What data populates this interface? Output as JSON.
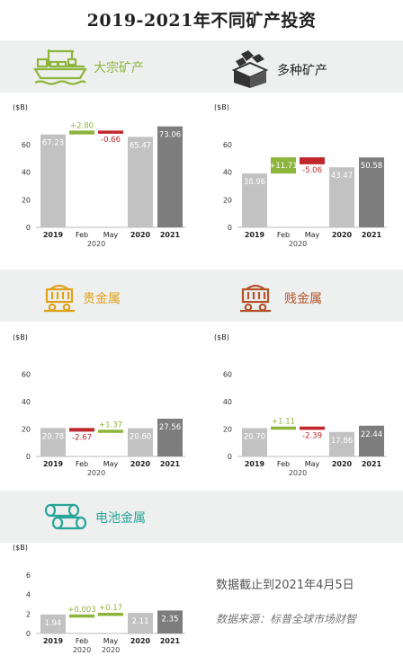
{
  "title": "2019-2021年不同矿产投资",
  "colors": {
    "bar_base": "#c2c2c2",
    "bar_2021": "#7d7d7d",
    "increase": "#8db53c",
    "decrease": "#c0272d",
    "band": "#eef0ef",
    "bulk": "#8db53c",
    "diversified": "#333333",
    "precious": "#e0a21c",
    "base_metal": "#b5532a",
    "battery": "#2aa59a"
  },
  "sections": {
    "bulk": {
      "label": "大宗矿产",
      "icon": "cargo-ship-icon"
    },
    "diversified": {
      "label": "多种矿产",
      "icon": "ore-box-icon"
    },
    "precious": {
      "label": "贵金属",
      "icon": "ore-cart-gold-icon"
    },
    "base_metal": {
      "label": "贱金属",
      "icon": "ore-cart-icon"
    },
    "battery": {
      "label": "电池金属",
      "icon": "pipes-icon"
    }
  },
  "notes": {
    "cutoff": "数据截止到2021年4月5日",
    "source": "数据来源：标普全球市场财智"
  },
  "chart_data": [
    {
      "type": "bar",
      "name": "大宗矿产",
      "ylabel": "($B)",
      "ylim": [
        0,
        80
      ],
      "yticks": [
        0,
        20,
        40,
        60
      ],
      "categories": [
        "2019",
        "Feb",
        "May",
        "2020",
        "2021"
      ],
      "sub_labels": [
        "",
        "2020",
        "",
        "",
        ""
      ],
      "kinds": [
        "base",
        "delta",
        "delta",
        "base",
        "total"
      ],
      "values": [
        67.23,
        2.8,
        -0.66,
        65.47,
        73.06
      ],
      "labels": [
        "67.23",
        "+2.80",
        "-0.66",
        "65.47",
        "73.06"
      ]
    },
    {
      "type": "bar",
      "name": "多种矿产",
      "ylabel": "($B)",
      "ylim": [
        0,
        80
      ],
      "yticks": [
        0,
        20,
        40,
        60
      ],
      "categories": [
        "2019",
        "Feb",
        "May",
        "2020",
        "2021"
      ],
      "sub_labels": [
        "",
        "2020",
        "",
        "",
        ""
      ],
      "kinds": [
        "base",
        "delta",
        "delta",
        "base",
        "total"
      ],
      "values": [
        38.96,
        11.71,
        -5.06,
        43.47,
        50.58
      ],
      "labels": [
        "38.96",
        "+11.71",
        "-5.06",
        "43.47",
        "50.58"
      ]
    },
    {
      "type": "bar",
      "name": "贵金属",
      "ylabel": "($B)",
      "ylim": [
        0,
        80
      ],
      "yticks": [
        0,
        20,
        40,
        60
      ],
      "categories": [
        "2019",
        "Feb",
        "May",
        "2020",
        "2021"
      ],
      "sub_labels": [
        "",
        "2020",
        "",
        "",
        ""
      ],
      "kinds": [
        "base",
        "delta",
        "delta",
        "base",
        "total"
      ],
      "values": [
        20.78,
        -2.67,
        1.37,
        20.6,
        27.56
      ],
      "labels": [
        "20.78",
        "-2.67",
        "+1.37",
        "20.60",
        "27.56"
      ]
    },
    {
      "type": "bar",
      "name": "贱金属",
      "ylabel": "($B)",
      "ylim": [
        0,
        80
      ],
      "yticks": [
        0,
        20,
        40,
        60
      ],
      "categories": [
        "2019",
        "Feb",
        "May",
        "2020",
        "2021"
      ],
      "sub_labels": [
        "",
        "2020",
        "",
        "",
        ""
      ],
      "kinds": [
        "base",
        "delta",
        "delta",
        "base",
        "total"
      ],
      "values": [
        20.7,
        1.11,
        -2.39,
        17.86,
        22.44
      ],
      "labels": [
        "20.70",
        "+1.11",
        "-2.39",
        "17.86",
        "22.44"
      ]
    },
    {
      "type": "bar",
      "name": "电池金属",
      "ylabel": "($B)",
      "ylim": [
        0,
        8
      ],
      "yticks": [
        0,
        2,
        4,
        6
      ],
      "categories": [
        "2019",
        "Feb",
        "May",
        "2020",
        "2021"
      ],
      "sub_labels": [
        "",
        "2020",
        "2020",
        "",
        ""
      ],
      "kinds": [
        "base",
        "delta",
        "delta",
        "base",
        "total"
      ],
      "values": [
        1.94,
        0.003,
        0.17,
        2.11,
        2.35
      ],
      "labels": [
        "1.94",
        "+0.003",
        "+0.17",
        "2.11",
        "2.35"
      ]
    }
  ]
}
